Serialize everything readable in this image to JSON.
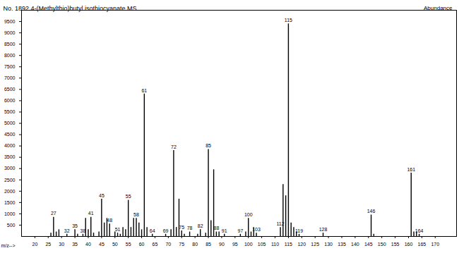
{
  "chart_data": {
    "type": "stick",
    "title": "No. 1892 4-(Methylthio)butyl isothiocyanate MS",
    "x_label": "m/z-->",
    "y_label": "Abundance",
    "x": [
      26,
      27,
      28,
      29,
      32,
      35,
      36,
      38,
      39,
      40,
      41,
      42,
      44,
      45,
      46,
      47,
      48,
      50,
      51,
      52,
      53,
      54,
      55,
      56,
      57,
      58,
      59,
      60,
      61,
      62,
      64,
      69,
      71,
      72,
      73,
      74,
      75,
      76,
      78,
      81,
      82,
      84,
      85,
      86,
      87,
      88,
      89,
      91,
      97,
      99,
      100,
      101,
      102,
      103,
      112,
      113,
      114,
      115,
      116,
      117,
      118,
      119,
      128,
      146,
      147,
      161,
      162,
      163,
      164
    ],
    "values": [
      150,
      850,
      200,
      300,
      100,
      300,
      100,
      100,
      800,
      300,
      850,
      150,
      200,
      1650,
      600,
      800,
      550,
      200,
      150,
      100,
      400,
      300,
      1600,
      400,
      800,
      800,
      600,
      300,
      6300,
      400,
      100,
      100,
      300,
      3800,
      400,
      1650,
      250,
      100,
      200,
      100,
      300,
      150,
      3850,
      700,
      2950,
      200,
      200,
      100,
      100,
      200,
      800,
      200,
      400,
      150,
      400,
      2300,
      1800,
      9400,
      600,
      400,
      200,
      100,
      150,
      950,
      100,
      2800,
      200,
      200,
      100
    ],
    "annotations": [
      27,
      32,
      35,
      38,
      41,
      45,
      48,
      51,
      55,
      58,
      61,
      64,
      69,
      72,
      75,
      78,
      82,
      85,
      88,
      91,
      97,
      100,
      103,
      112,
      115,
      119,
      128,
      146,
      161,
      164
    ],
    "color": "#000000",
    "xlim": [
      15,
      178
    ],
    "xticks": [
      20,
      25,
      30,
      35,
      40,
      45,
      50,
      55,
      60,
      65,
      70,
      75,
      80,
      85,
      90,
      95,
      100,
      105,
      110,
      115,
      120,
      125,
      130,
      135,
      140,
      145,
      150,
      155,
      160,
      165,
      170
    ],
    "ylim": [
      0,
      10000
    ],
    "yticks": [
      500,
      1000,
      1500,
      2000,
      2500,
      3000,
      3500,
      4000,
      4500,
      5000,
      5500,
      6000,
      6500,
      7000,
      7500,
      8000,
      8500,
      9000,
      9500
    ],
    "grid": false
  }
}
